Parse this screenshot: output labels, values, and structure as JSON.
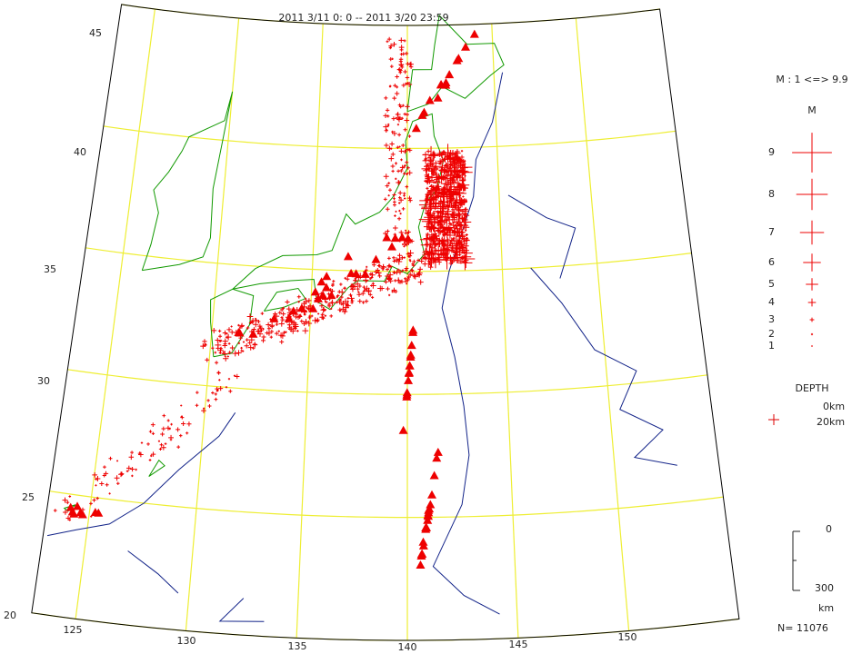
{
  "map": {
    "title": "2011 3/11 0: 0 -- 2011 3/20 23:59",
    "lat_labels": [
      "45",
      "40",
      "35",
      "30",
      "25",
      "20"
    ],
    "lon_labels": [
      "125",
      "130",
      "135",
      "140",
      "145",
      "150"
    ],
    "legend": {
      "range": "M : 1 <=> 9.9",
      "header": "M",
      "magnitudes": [
        9,
        8,
        7,
        6,
        5,
        4,
        3,
        2,
        1
      ],
      "depth_title": "DEPTH",
      "depths": [
        "0km",
        "20km"
      ],
      "scale_top": "0",
      "scale_bottom": "300",
      "scale_unit": "km"
    },
    "count": "N= 11076"
  }
}
